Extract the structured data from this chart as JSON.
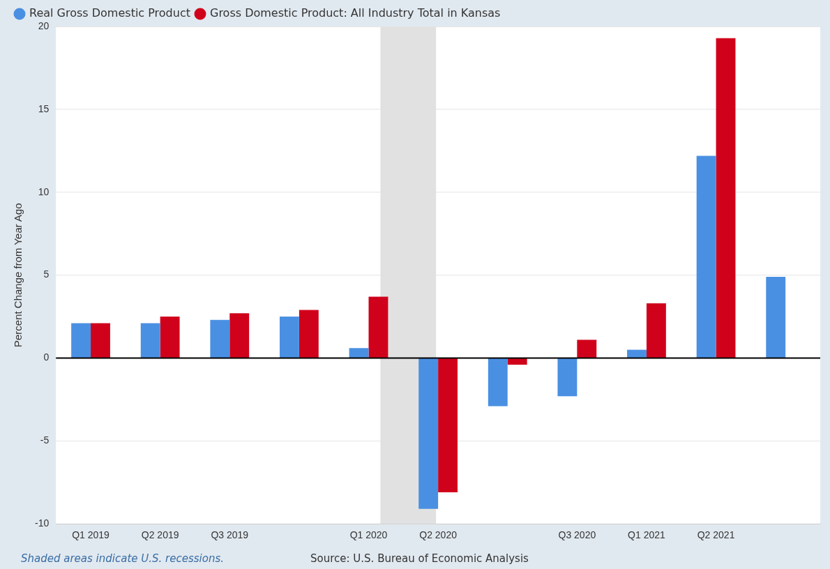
{
  "chart_data": {
    "type": "bar",
    "ylabel": "Percent Change from Year Ago",
    "categories": [
      "Q1 2019",
      "Q2 2019",
      "Q3 2019",
      null,
      "Q1 2020",
      "Q2 2020",
      null,
      "Q3 2020",
      "Q1 2021",
      "Q2 2021",
      null
    ],
    "series": [
      {
        "name": "Real Gross Domestic Product",
        "color": "#4a90e2",
        "values": [
          2.1,
          2.1,
          2.3,
          2.5,
          0.6,
          -9.1,
          -2.9,
          -2.3,
          0.5,
          12.2,
          4.9
        ]
      },
      {
        "name": "Gross Domestic Product: All Industry Total in Kansas",
        "color": "#d0021b",
        "values": [
          2.1,
          2.5,
          2.7,
          2.9,
          3.7,
          -8.1,
          -0.4,
          1.1,
          3.3,
          19.3,
          null
        ]
      }
    ],
    "ylim": [
      -10,
      20
    ],
    "yticks": [
      -10,
      -5,
      0,
      5,
      10,
      15,
      20
    ],
    "grid": "y",
    "legend": "top left",
    "ref_lines": [
      {
        "axis": "y",
        "value": 0,
        "color": "#000000"
      }
    ],
    "bands": [
      {
        "axis": "x",
        "from": "Q1 2020",
        "to": "Q2 2020",
        "color": "#e1e1e1"
      }
    ],
    "annotations": [
      "Shaded areas indicate U.S. recessions.",
      "Source: U.S. Bureau of Economic Analysis"
    ]
  }
}
